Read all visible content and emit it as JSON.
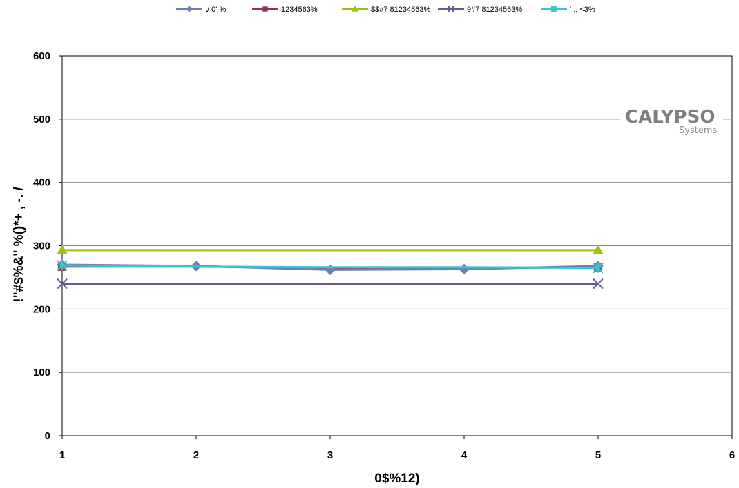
{
  "chart_data": {
    "type": "line",
    "title": "",
    "xlabel": "0$%12)",
    "ylabel": "!\"#$%&'' %()*+ , -. /",
    "xlim": [
      1,
      6
    ],
    "ylim": [
      0,
      600
    ],
    "x_ticks": [
      "1",
      "2",
      "3",
      "4",
      "5",
      "6"
    ],
    "y_ticks": [
      "0",
      "100",
      "200",
      "300",
      "400",
      "500",
      "600"
    ],
    "grid": "horizontal",
    "legend_position": "top",
    "x": [
      1,
      2,
      3,
      4,
      5
    ],
    "series": [
      {
        "name": "./ 0' %",
        "color": "#6c7fb8",
        "marker": "diamond",
        "values": [
          270,
          268,
          262,
          263,
          268
        ]
      },
      {
        "name": "1234563%",
        "color": "#a0304a",
        "marker": "square",
        "values": [
          267,
          267,
          265,
          265,
          266
        ]
      },
      {
        "name": "$$#7 81234563%",
        "color": "#99c31a",
        "marker": "triangle",
        "values": [
          293,
          293,
          293,
          293,
          293
        ]
      },
      {
        "name": "9#7 81234563%",
        "color": "#635a98",
        "marker": "x",
        "values": [
          240,
          240,
          240,
          240,
          240
        ]
      },
      {
        "name": "' :; <3%",
        "color": "#3ac4cc",
        "marker": "star",
        "values": [
          269,
          267,
          266,
          266,
          265
        ]
      }
    ]
  },
  "logo": {
    "main": "CALYPSO",
    "sub": "Systems"
  }
}
